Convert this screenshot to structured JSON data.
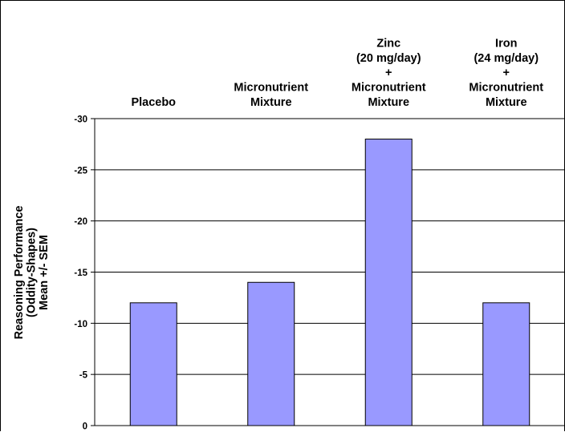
{
  "chart_data": {
    "type": "bar",
    "title": "",
    "xlabel": "",
    "ylabel": [
      "Reasoning Performance",
      "(Oddity-Shapes)",
      "Mean +/- SEM"
    ],
    "categories": [
      [
        "Placebo"
      ],
      [
        "Micronutrient",
        "Mixture"
      ],
      [
        "Zinc",
        "(20 mg/day)",
        "+",
        "Micronutrient",
        "Mixture"
      ],
      [
        "Iron",
        "(24 mg/day)",
        "+",
        "Micronutrient",
        "Mixture"
      ]
    ],
    "values": [
      -12,
      -14,
      -28,
      -12
    ],
    "ylim": [
      0,
      -30
    ],
    "yticks": [
      0,
      -5,
      -10,
      -15,
      -20,
      -25,
      -30
    ],
    "ytick_labels": [
      "0",
      "-5",
      "-10",
      "-15",
      "-20",
      "-25",
      "-30"
    ],
    "inverted_y": true,
    "grid": true,
    "legend": "none",
    "colors": {
      "bar": "#9999ff",
      "bar_edge": "#000000",
      "grid": "#000000"
    }
  }
}
